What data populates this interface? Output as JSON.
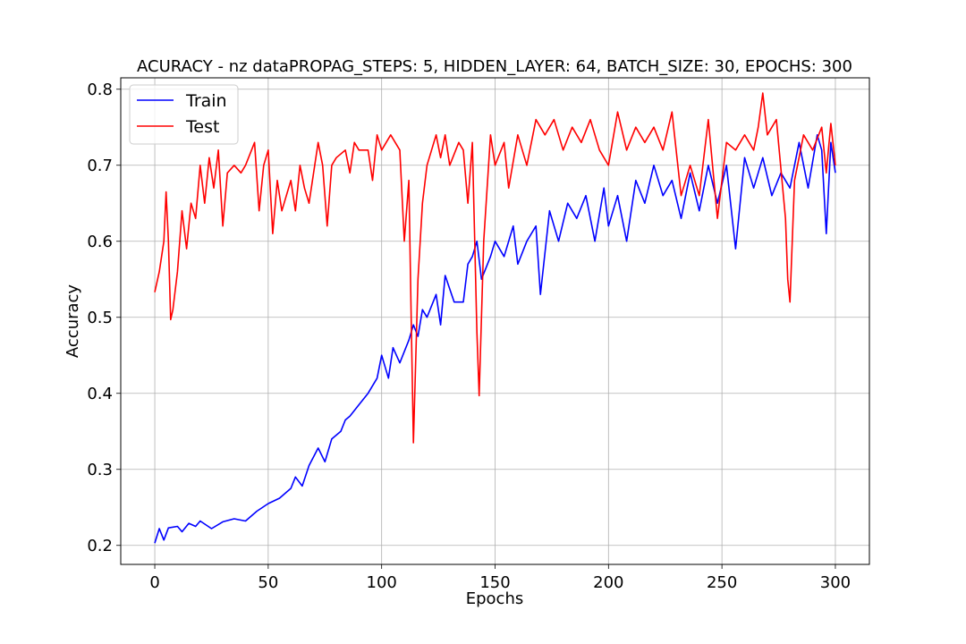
{
  "chart_data": {
    "type": "line",
    "title": "ACURACY - nz dataPROPAG_STEPS: 5, HIDDEN_LAYER: 64, BATCH_SIZE: 30, EPOCHS: 300",
    "xlabel": "Epochs",
    "ylabel": "Accuracy",
    "xlim": [
      -15,
      315
    ],
    "ylim": [
      0.175,
      0.815
    ],
    "xticks": [
      0,
      50,
      100,
      150,
      200,
      250,
      300
    ],
    "yticks": [
      0.2,
      0.3,
      0.4,
      0.5,
      0.6,
      0.7,
      0.8
    ],
    "xtick_labels": [
      "0",
      "50",
      "100",
      "150",
      "200",
      "250",
      "300"
    ],
    "ytick_labels": [
      "0.2",
      "0.3",
      "0.4",
      "0.5",
      "0.6",
      "0.7",
      "0.8"
    ],
    "grid": true,
    "legend_position": "upper-left",
    "series": [
      {
        "name": "Train",
        "color": "#0000ff",
        "points": [
          [
            0,
            0.203
          ],
          [
            2,
            0.222
          ],
          [
            4,
            0.207
          ],
          [
            6,
            0.223
          ],
          [
            10,
            0.225
          ],
          [
            12,
            0.218
          ],
          [
            15,
            0.229
          ],
          [
            18,
            0.225
          ],
          [
            20,
            0.232
          ],
          [
            25,
            0.222
          ],
          [
            30,
            0.231
          ],
          [
            35,
            0.235
          ],
          [
            40,
            0.232
          ],
          [
            45,
            0.245
          ],
          [
            50,
            0.255
          ],
          [
            55,
            0.262
          ],
          [
            60,
            0.275
          ],
          [
            62,
            0.29
          ],
          [
            65,
            0.278
          ],
          [
            68,
            0.305
          ],
          [
            72,
            0.328
          ],
          [
            75,
            0.31
          ],
          [
            78,
            0.34
          ],
          [
            82,
            0.35
          ],
          [
            84,
            0.365
          ],
          [
            86,
            0.37
          ],
          [
            90,
            0.385
          ],
          [
            94,
            0.4
          ],
          [
            98,
            0.42
          ],
          [
            100,
            0.45
          ],
          [
            103,
            0.42
          ],
          [
            105,
            0.46
          ],
          [
            108,
            0.44
          ],
          [
            112,
            0.47
          ],
          [
            114,
            0.49
          ],
          [
            116,
            0.475
          ],
          [
            118,
            0.51
          ],
          [
            120,
            0.5
          ],
          [
            124,
            0.53
          ],
          [
            126,
            0.49
          ],
          [
            128,
            0.555
          ],
          [
            132,
            0.52
          ],
          [
            136,
            0.52
          ],
          [
            138,
            0.57
          ],
          [
            140,
            0.58
          ],
          [
            142,
            0.6
          ],
          [
            144,
            0.55
          ],
          [
            148,
            0.58
          ],
          [
            150,
            0.6
          ],
          [
            154,
            0.58
          ],
          [
            158,
            0.62
          ],
          [
            160,
            0.57
          ],
          [
            164,
            0.6
          ],
          [
            168,
            0.62
          ],
          [
            170,
            0.53
          ],
          [
            174,
            0.64
          ],
          [
            178,
            0.6
          ],
          [
            182,
            0.65
          ],
          [
            186,
            0.63
          ],
          [
            190,
            0.66
          ],
          [
            194,
            0.6
          ],
          [
            198,
            0.67
          ],
          [
            200,
            0.62
          ],
          [
            204,
            0.66
          ],
          [
            208,
            0.6
          ],
          [
            212,
            0.68
          ],
          [
            216,
            0.65
          ],
          [
            220,
            0.7
          ],
          [
            224,
            0.66
          ],
          [
            228,
            0.68
          ],
          [
            232,
            0.63
          ],
          [
            236,
            0.69
          ],
          [
            240,
            0.64
          ],
          [
            244,
            0.7
          ],
          [
            248,
            0.65
          ],
          [
            252,
            0.7
          ],
          [
            256,
            0.59
          ],
          [
            260,
            0.71
          ],
          [
            264,
            0.67
          ],
          [
            268,
            0.71
          ],
          [
            272,
            0.66
          ],
          [
            276,
            0.69
          ],
          [
            280,
            0.67
          ],
          [
            284,
            0.73
          ],
          [
            288,
            0.67
          ],
          [
            292,
            0.74
          ],
          [
            294,
            0.72
          ],
          [
            296,
            0.61
          ],
          [
            298,
            0.73
          ],
          [
            300,
            0.69
          ]
        ]
      },
      {
        "name": "Test",
        "color": "#ff0000",
        "points": [
          [
            0,
            0.533
          ],
          [
            2,
            0.56
          ],
          [
            4,
            0.6
          ],
          [
            5,
            0.665
          ],
          [
            6,
            0.6
          ],
          [
            7,
            0.497
          ],
          [
            8,
            0.51
          ],
          [
            10,
            0.56
          ],
          [
            12,
            0.64
          ],
          [
            14,
            0.59
          ],
          [
            16,
            0.65
          ],
          [
            18,
            0.63
          ],
          [
            20,
            0.7
          ],
          [
            22,
            0.65
          ],
          [
            24,
            0.71
          ],
          [
            26,
            0.67
          ],
          [
            28,
            0.72
          ],
          [
            30,
            0.62
          ],
          [
            32,
            0.69
          ],
          [
            35,
            0.7
          ],
          [
            38,
            0.69
          ],
          [
            40,
            0.7
          ],
          [
            44,
            0.73
          ],
          [
            46,
            0.64
          ],
          [
            48,
            0.7
          ],
          [
            50,
            0.72
          ],
          [
            52,
            0.61
          ],
          [
            54,
            0.68
          ],
          [
            56,
            0.64
          ],
          [
            60,
            0.68
          ],
          [
            62,
            0.64
          ],
          [
            64,
            0.7
          ],
          [
            66,
            0.67
          ],
          [
            68,
            0.65
          ],
          [
            70,
            0.69
          ],
          [
            72,
            0.73
          ],
          [
            74,
            0.7
          ],
          [
            76,
            0.62
          ],
          [
            78,
            0.7
          ],
          [
            80,
            0.71
          ],
          [
            84,
            0.72
          ],
          [
            86,
            0.69
          ],
          [
            88,
            0.73
          ],
          [
            90,
            0.72
          ],
          [
            94,
            0.72
          ],
          [
            96,
            0.68
          ],
          [
            98,
            0.74
          ],
          [
            100,
            0.72
          ],
          [
            104,
            0.74
          ],
          [
            108,
            0.72
          ],
          [
            110,
            0.6
          ],
          [
            112,
            0.68
          ],
          [
            113,
            0.5
          ],
          [
            114,
            0.335
          ],
          [
            116,
            0.55
          ],
          [
            118,
            0.65
          ],
          [
            120,
            0.7
          ],
          [
            124,
            0.74
          ],
          [
            126,
            0.71
          ],
          [
            128,
            0.74
          ],
          [
            130,
            0.7
          ],
          [
            134,
            0.73
          ],
          [
            136,
            0.72
          ],
          [
            138,
            0.65
          ],
          [
            140,
            0.73
          ],
          [
            142,
            0.48
          ],
          [
            143,
            0.397
          ],
          [
            145,
            0.6
          ],
          [
            148,
            0.74
          ],
          [
            150,
            0.7
          ],
          [
            154,
            0.73
          ],
          [
            156,
            0.67
          ],
          [
            160,
            0.74
          ],
          [
            164,
            0.7
          ],
          [
            168,
            0.76
          ],
          [
            172,
            0.74
          ],
          [
            176,
            0.76
          ],
          [
            180,
            0.72
          ],
          [
            184,
            0.75
          ],
          [
            188,
            0.73
          ],
          [
            192,
            0.76
          ],
          [
            196,
            0.72
          ],
          [
            200,
            0.7
          ],
          [
            204,
            0.77
          ],
          [
            208,
            0.72
          ],
          [
            212,
            0.75
          ],
          [
            216,
            0.73
          ],
          [
            220,
            0.75
          ],
          [
            224,
            0.72
          ],
          [
            228,
            0.77
          ],
          [
            232,
            0.66
          ],
          [
            236,
            0.7
          ],
          [
            240,
            0.66
          ],
          [
            244,
            0.76
          ],
          [
            248,
            0.63
          ],
          [
            252,
            0.73
          ],
          [
            256,
            0.72
          ],
          [
            260,
            0.74
          ],
          [
            264,
            0.72
          ],
          [
            266,
            0.75
          ],
          [
            268,
            0.795
          ],
          [
            270,
            0.74
          ],
          [
            274,
            0.76
          ],
          [
            278,
            0.63
          ],
          [
            279,
            0.55
          ],
          [
            280,
            0.52
          ],
          [
            282,
            0.68
          ],
          [
            286,
            0.74
          ],
          [
            290,
            0.72
          ],
          [
            294,
            0.75
          ],
          [
            296,
            0.69
          ],
          [
            298,
            0.755
          ],
          [
            300,
            0.7
          ]
        ]
      }
    ]
  }
}
